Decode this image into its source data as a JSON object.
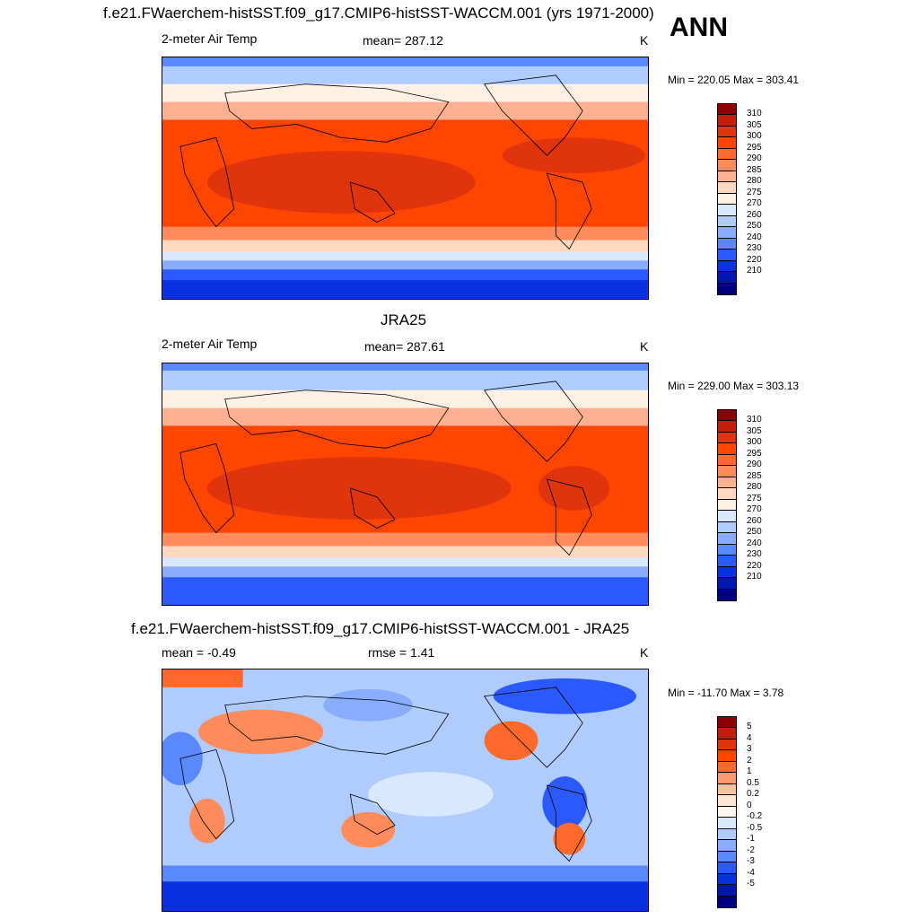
{
  "header": {
    "title": "f.e21.FWaerchem-histSST.f09_g17.CMIP6-histSST-WACCM.001 (yrs 1971-2000)",
    "season": "ANN"
  },
  "panels": [
    {
      "id": "model",
      "title": "",
      "left_label": "2-meter Air Temp",
      "center_label": "mean= 287.12",
      "units": "K",
      "minmax": "Min = 220.05 Max = 303.41"
    },
    {
      "id": "obs",
      "title": "JRA25",
      "left_label": "2-meter Air Temp",
      "center_label": "mean= 287.61",
      "units": "K",
      "minmax": "Min = 229.00 Max = 303.13"
    },
    {
      "id": "diff",
      "title": "f.e21.FWaerchem-histSST.f09_g17.CMIP6-histSST-WACCM.001 - JRA25",
      "left_label": "mean =  -0.49",
      "center_label": "rmse =   1.41",
      "units": "K",
      "minmax": "Min = -11.70 Max =   3.78"
    }
  ],
  "colorbars": {
    "temperature": {
      "labels": [
        "310",
        "305",
        "300",
        "295",
        "290",
        "285",
        "280",
        "275",
        "270",
        "260",
        "250",
        "240",
        "230",
        "220",
        "210"
      ],
      "colors": [
        "#8b0000",
        "#c0200a",
        "#e0340e",
        "#ff4500",
        "#ff6a2a",
        "#ff8c5a",
        "#ffb090",
        "#ffd8c0",
        "#fff0e4",
        "#d8e8ff",
        "#b0ccff",
        "#88acff",
        "#5a88ff",
        "#2a5aff",
        "#0a30e0",
        "#0018b0",
        "#000080"
      ]
    },
    "difference": {
      "labels": [
        "5",
        "4",
        "3",
        "2",
        "1",
        "0.5",
        "0.2",
        "0",
        "-0.2",
        "-0.5",
        "-1",
        "-2",
        "-3",
        "-4",
        "-5"
      ],
      "colors": [
        "#8b0000",
        "#c0200a",
        "#e0340e",
        "#ff4500",
        "#ff6a2a",
        "#ff9a70",
        "#ffc0a0",
        "#ffe4d4",
        "#fff6ee",
        "#d8e8ff",
        "#b0ccff",
        "#88acff",
        "#5a88ff",
        "#2a5aff",
        "#0a30e0",
        "#0018b0",
        "#000080"
      ]
    }
  }
}
